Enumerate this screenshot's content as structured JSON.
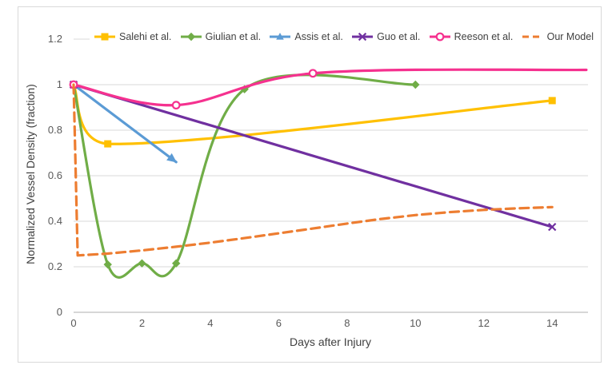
{
  "figure": {
    "background_color": "#ffffff",
    "frame_border_color": "#d9d9d9",
    "gridline_color": "#d9d9d9",
    "axis_line_color": "#bfbfbf",
    "tick_text_color": "#595959",
    "axis_title_color": "#404040"
  },
  "chart_data": {
    "type": "line",
    "title": "",
    "xlabel": "Days after Injury",
    "ylabel": "Normalized Vessel Density (fraction)",
    "xlim": [
      0,
      15
    ],
    "ylim": [
      0,
      1.2
    ],
    "grid": "horizontal",
    "legend_position": "top",
    "x_ticks": [
      0,
      2,
      4,
      6,
      8,
      10,
      12,
      14
    ],
    "x_tick_labels": [
      "0",
      "2",
      "4",
      "6",
      "8",
      "10",
      "12",
      "14"
    ],
    "y_ticks": [
      0,
      0.2,
      0.4,
      0.6,
      0.8,
      1,
      1.2
    ],
    "y_tick_labels": [
      "0",
      "0.2",
      "0.4",
      "0.6",
      "0.8",
      "1",
      "1.2"
    ],
    "series": [
      {
        "name": "Salehi et al.",
        "color": "#FFC000",
        "marker": "square",
        "smooth": true,
        "dashed": false,
        "points": [
          [
            0,
            1
          ],
          [
            1,
            0.74
          ],
          [
            14,
            0.93
          ]
        ]
      },
      {
        "name": "Giulian et al.",
        "color": "#70AD47",
        "marker": "diamond",
        "smooth": true,
        "dashed": false,
        "points": [
          [
            0,
            1
          ],
          [
            1,
            0.21
          ],
          [
            2,
            0.215
          ],
          [
            3,
            0.215
          ],
          [
            5,
            0.98
          ],
          [
            10,
            1.0
          ]
        ]
      },
      {
        "name": "Assis et al.",
        "color": "#5B9BD5",
        "marker": "triangle",
        "smooth": false,
        "dashed": false,
        "arrow_end": true,
        "points": [
          [
            0,
            1
          ],
          [
            3,
            0.66
          ]
        ],
        "marker_points": []
      },
      {
        "name": "Guo et al.",
        "color": "#7030A0",
        "marker": "x",
        "smooth": false,
        "dashed": false,
        "points": [
          [
            0,
            1
          ],
          [
            14,
            0.375
          ]
        ]
      },
      {
        "name": "Reeson et al.",
        "color": "#F5318F",
        "marker": "circle-open",
        "smooth": true,
        "dashed": false,
        "points": [
          [
            0,
            1
          ],
          [
            3,
            0.91
          ],
          [
            7,
            1.05
          ],
          [
            15,
            1.065
          ]
        ],
        "marker_points": [
          [
            0,
            1
          ],
          [
            3,
            0.91
          ],
          [
            7,
            1.05
          ]
        ]
      },
      {
        "name": "Our Model",
        "color": "#ED7D31",
        "marker": "dash",
        "smooth": false,
        "dashed": true,
        "points": [
          [
            0,
            1
          ],
          [
            0.12,
            0.25
          ],
          [
            1,
            0.258
          ],
          [
            2,
            0.272
          ],
          [
            3,
            0.288
          ],
          [
            4,
            0.306
          ],
          [
            5,
            0.326
          ],
          [
            6,
            0.347
          ],
          [
            7,
            0.368
          ],
          [
            8,
            0.39
          ],
          [
            9,
            0.41
          ],
          [
            10,
            0.427
          ],
          [
            11,
            0.44
          ],
          [
            12,
            0.45
          ],
          [
            13,
            0.457
          ],
          [
            14,
            0.462
          ]
        ],
        "marker_points": []
      }
    ]
  }
}
